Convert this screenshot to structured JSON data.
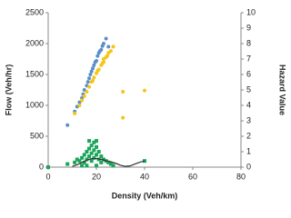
{
  "chart_data": {
    "type": "scatter",
    "x_label": "Density (Veh/km)",
    "y_label": "Flow (Veh/hr)",
    "y2_label": "Hazard Value",
    "xlim": [
      0,
      80
    ],
    "xticks": [
      0,
      20,
      40,
      60,
      80
    ],
    "ylim": [
      0,
      2500
    ],
    "yticks": [
      0,
      500,
      1000,
      1500,
      2000,
      2500
    ],
    "y2lim": [
      0,
      10
    ],
    "y2ticks": [
      0,
      1,
      2,
      3,
      4,
      5,
      6,
      7,
      8,
      9,
      10
    ],
    "grid": false,
    "series": [
      {
        "color": "#5b8fc9",
        "marker": "circle",
        "x": [
          8,
          11,
          12,
          13,
          14,
          14.5,
          15,
          16,
          16.5,
          17,
          17.5,
          18,
          18.5,
          19,
          19.5,
          20,
          20.5,
          21,
          21.5,
          22,
          22.5,
          23,
          24,
          25
        ],
        "values": [
          680,
          900,
          980,
          1050,
          1120,
          1180,
          1250,
          1320,
          1380,
          1440,
          1500,
          1550,
          1600,
          1650,
          1700,
          1720,
          1800,
          1850,
          1880,
          1900,
          1960,
          2000,
          2080,
          1950
        ]
      },
      {
        "color": "#f5c518",
        "marker": "circle",
        "x": [
          11,
          13,
          14,
          15,
          16,
          17,
          18,
          18.5,
          19,
          20,
          20.5,
          21,
          22,
          22.5,
          23,
          23,
          24,
          24.5,
          25,
          26,
          27,
          31,
          31,
          40
        ],
        "values": [
          870,
          1000,
          1080,
          1150,
          1220,
          1300,
          1380,
          1400,
          1450,
          1520,
          1560,
          1580,
          1650,
          1680,
          1700,
          1750,
          1780,
          1800,
          1850,
          1880,
          1950,
          1220,
          800,
          1240
        ]
      },
      {
        "color": "#1aa65a",
        "marker": "square",
        "axis": "y2",
        "x": [
          0,
          8,
          11,
          12,
          13,
          14,
          14,
          15,
          15,
          16,
          16,
          16,
          17,
          17,
          17,
          18,
          18,
          18,
          19,
          19,
          19,
          20,
          20,
          20,
          20,
          21,
          21,
          22,
          22,
          23,
          24,
          25,
          26,
          27,
          40
        ],
        "values": [
          0,
          0.2,
          0.3,
          0.5,
          0.4,
          0.6,
          0.1,
          0.8,
          0.3,
          1.0,
          0.5,
          0.1,
          1.2,
          0.7,
          1.7,
          1.4,
          0.9,
          0.4,
          1.6,
          1.1,
          0.6,
          1.7,
          1.3,
          0.8,
          0.1,
          1.0,
          0.5,
          0.7,
          0.3,
          0.5,
          0.4,
          0.3,
          0.2,
          0.1,
          0.4
        ]
      },
      {
        "color": "#333333",
        "type": "line",
        "axis": "y2",
        "x": [
          10,
          12,
          14,
          16,
          18,
          20,
          22,
          24,
          26,
          28,
          30,
          32,
          34,
          36,
          38,
          40
        ],
        "values": [
          0.05,
          0.15,
          0.3,
          0.45,
          0.55,
          0.55,
          0.5,
          0.42,
          0.35,
          0.25,
          0.12,
          0.05,
          0.08,
          0.2,
          0.32,
          0.4
        ]
      }
    ]
  }
}
